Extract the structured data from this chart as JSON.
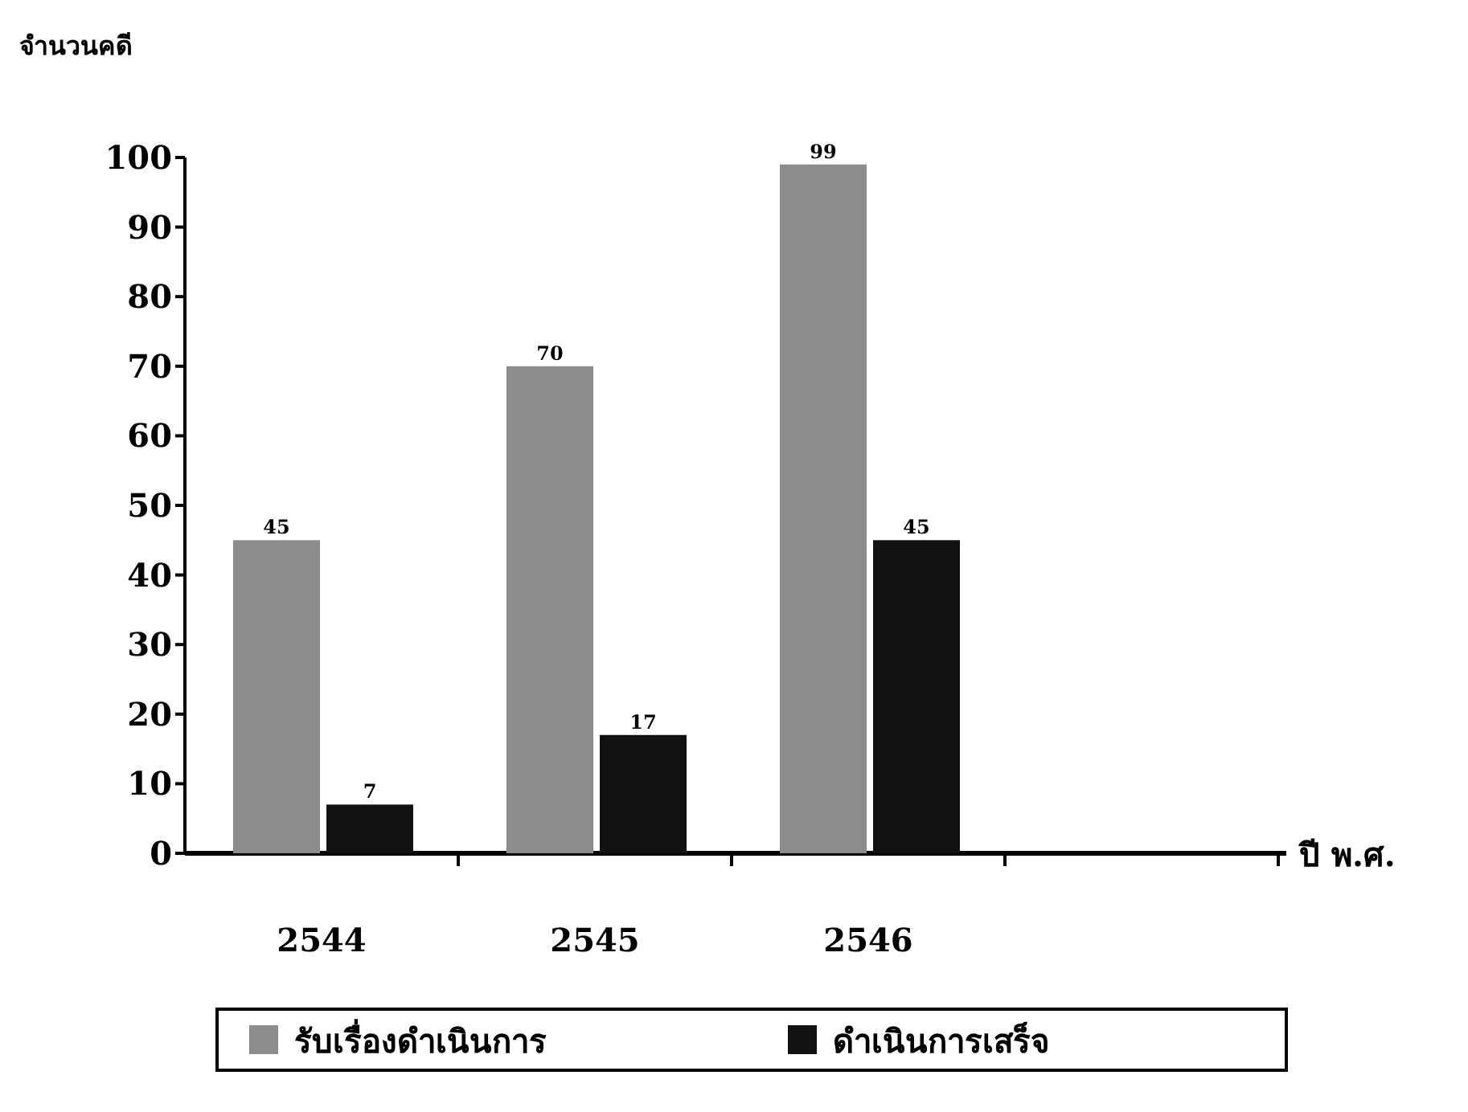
{
  "chart_data": {
    "type": "bar",
    "ylabel": "จำนวนคดี",
    "annotations": [
      "ปี พ.ศ."
    ],
    "categories": [
      "2544",
      "2545",
      "2546"
    ],
    "series": [
      {
        "name": "รับเรื่องดำเนินการ",
        "color": "#8c8c8c",
        "values": [
          45,
          70,
          99
        ]
      },
      {
        "name": "ดำเนินการเสร็จ",
        "color": "#111111",
        "values": [
          7,
          17,
          45
        ]
      }
    ],
    "ylim": [
      0,
      100
    ],
    "yticks": [
      0,
      10,
      20,
      30,
      40,
      50,
      60,
      70,
      80,
      90,
      100
    ],
    "data_labels": true,
    "grid": false,
    "legend": "bottom"
  }
}
